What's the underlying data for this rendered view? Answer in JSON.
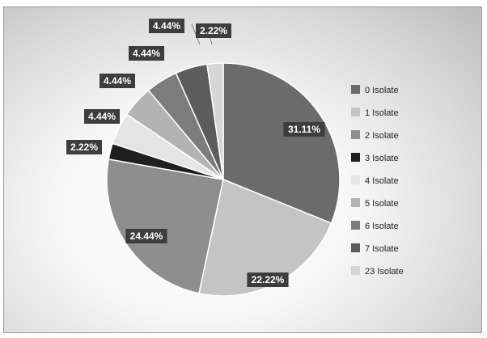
{
  "chart_data": {
    "type": "pie",
    "categories": [
      "0 Isolate",
      "1 Isolate",
      "2 Isolate",
      "3 Isolate",
      "4 Isolate",
      "5 Isolate",
      "6 Isolate",
      "7 Isolate",
      "23 Isolate"
    ],
    "values": [
      31.11,
      22.22,
      24.44,
      2.22,
      4.44,
      4.44,
      4.44,
      4.44,
      2.22
    ],
    "data_labels": [
      "31.11%",
      "22.22%",
      "24.44%",
      "2.22%",
      "4.44%",
      "4.44%",
      "4.44%",
      "4.44%",
      "2.22%"
    ],
    "colors": [
      "#6b6b6b",
      "#c4c4c4",
      "#8e8e8e",
      "#1f1f1f",
      "#e4e4e4",
      "#b3b3b3",
      "#7c7c7c",
      "#5c5c5c",
      "#d6d6d6"
    ],
    "start_angle_deg": 0,
    "direction": "clockwise",
    "legend_placement": "right",
    "title": ""
  }
}
